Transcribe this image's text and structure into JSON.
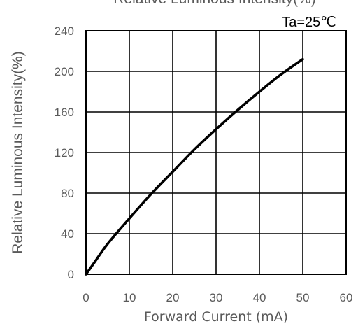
{
  "chart_data": {
    "type": "line",
    "title": "Relative Luminous Intensity(%)",
    "annotation": "Ta=25℃",
    "xlabel": "Forward Current (mA)",
    "ylabel": "Relative Luminous Intensity(%)",
    "xlim": [
      0,
      60
    ],
    "ylim": [
      0,
      240
    ],
    "xticks": [
      "0",
      "10",
      "20",
      "30",
      "40",
      "50",
      "60"
    ],
    "yticks": [
      "0",
      "40",
      "80",
      "120",
      "160",
      "200",
      "240"
    ],
    "grid": true,
    "series": [
      {
        "x": [
          0,
          1,
          2,
          5,
          10,
          15,
          20,
          25,
          30,
          35,
          40,
          45,
          50
        ],
        "y": [
          0,
          6,
          12,
          30,
          55,
          79,
          101,
          123,
          143,
          162,
          180,
          197,
          212
        ]
      }
    ]
  }
}
